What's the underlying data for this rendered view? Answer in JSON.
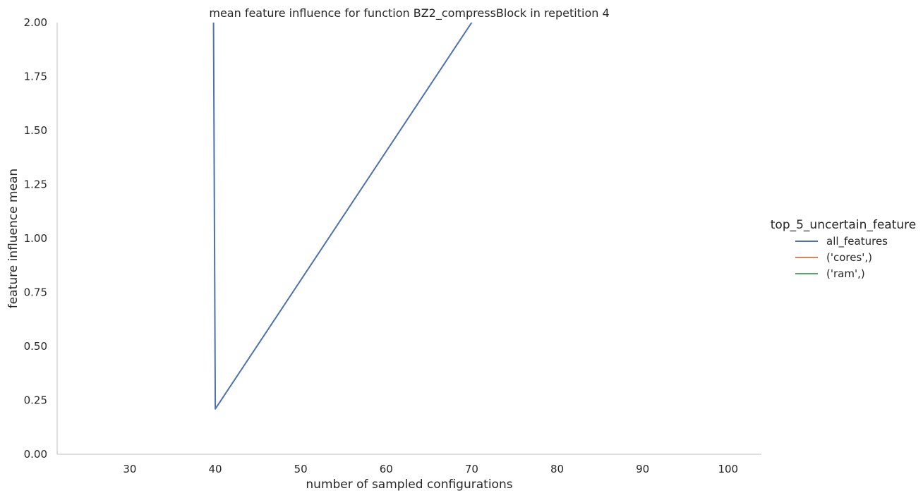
{
  "chart_data": {
    "type": "line",
    "title": "mean feature influence for function BZ2_compressBlock in repetition 4",
    "xlabel": "number of sampled configurations",
    "ylabel": "feature influence mean",
    "xlim": [
      21.5,
      103.9
    ],
    "ylim": [
      0,
      2.0
    ],
    "xticks": [
      30,
      40,
      50,
      60,
      70,
      80,
      90,
      100
    ],
    "yticks": [
      0.0,
      0.25,
      0.5,
      0.75,
      1.0,
      1.25,
      1.5,
      1.75,
      2.0
    ],
    "ytick_labels": [
      "0.00",
      "0.25",
      "0.50",
      "0.75",
      "1.00",
      "1.25",
      "1.50",
      "1.75",
      "2.00"
    ],
    "grid": false,
    "legend": {
      "title": "top_5_uncertain_feature",
      "placement": "right"
    },
    "series": [
      {
        "name": "all_features",
        "color": "#4c72b0",
        "x": [
          39.8,
          40,
          70,
          71
        ],
        "y": [
          2.0,
          0.21,
          2.0,
          2.05
        ]
      },
      {
        "name": "('cores',)",
        "color": "#dd8452",
        "x": [],
        "y": []
      },
      {
        "name": "('ram',)",
        "color": "#55a868",
        "x": [],
        "y": []
      }
    ]
  }
}
